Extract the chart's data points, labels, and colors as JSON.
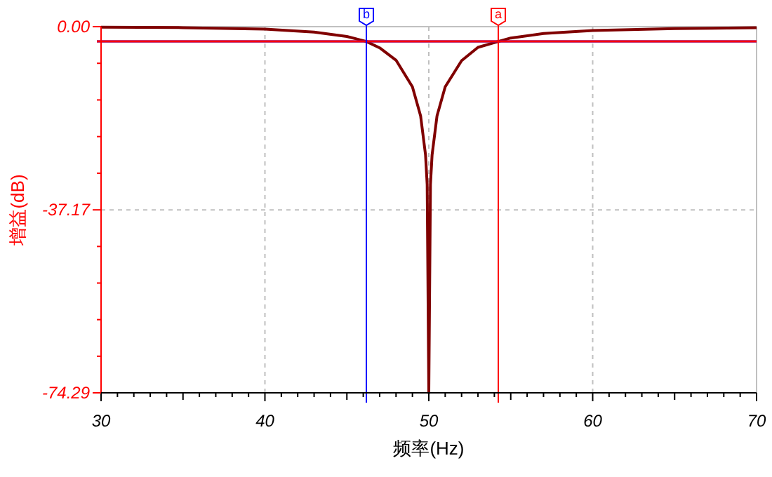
{
  "chart_data": {
    "type": "line",
    "xlabel": "频率(Hz)",
    "ylabel": "增益(dB)",
    "xlim": [
      30,
      70
    ],
    "xticks": [
      30,
      40,
      50,
      60,
      70
    ],
    "ylim": [
      -74.29,
      0
    ],
    "yticks": [
      {
        "value": 0,
        "label": "0.00"
      },
      -37.17,
      -74.29
    ],
    "grid": true,
    "series": [
      {
        "color": "#800000",
        "x": [
          30,
          35,
          40,
          43,
          45,
          46.19,
          47,
          48,
          49,
          49.5,
          49.8,
          49.9,
          50,
          50.1,
          50.2,
          50.5,
          51,
          52,
          53,
          54.24,
          55,
          57,
          60,
          65,
          70
        ],
        "values": [
          -0.1,
          -0.2,
          -0.5,
          -1.1,
          -2.0,
          -3.0,
          -4.3,
          -6.8,
          -12.2,
          -18.1,
          -26,
          -32,
          -74.29,
          -32,
          -26,
          -18.1,
          -12.2,
          -6.9,
          -4.2,
          -3.0,
          -2.3,
          -1.4,
          -0.8,
          -0.4,
          -0.2
        ]
      }
    ],
    "ref_lines": [
      {
        "axis": "y",
        "value": -3,
        "color": "#0000ff"
      },
      {
        "axis": "y",
        "value": -3,
        "color": "#ff0000"
      },
      {
        "axis": "x",
        "value": 46.19,
        "label": "b",
        "color": "#0000ff"
      },
      {
        "axis": "x",
        "value": 54.24,
        "label": "a",
        "color": "#ff0000"
      }
    ]
  }
}
